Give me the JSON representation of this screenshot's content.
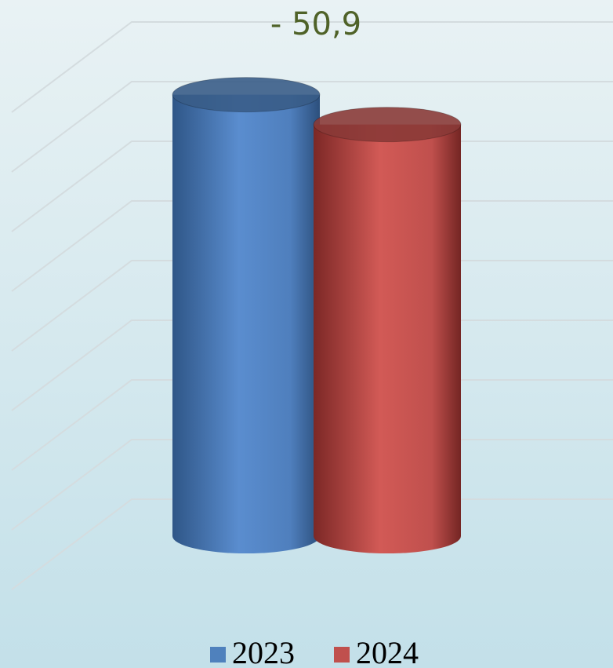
{
  "chart_data": {
    "type": "cylinder",
    "annotation": "- 50,9",
    "categories": [
      null
    ],
    "series": [
      {
        "name": "2023",
        "color": "#4f81bd",
        "values": [
          7.4
        ]
      },
      {
        "name": "2024",
        "color": "#c0504d",
        "values": [
          6.9
        ]
      }
    ],
    "ylim": [
      0,
      9
    ],
    "yticks": [
      1,
      2,
      3,
      4,
      5,
      6,
      7,
      8,
      9
    ],
    "grid": true,
    "legend": "bottom"
  }
}
